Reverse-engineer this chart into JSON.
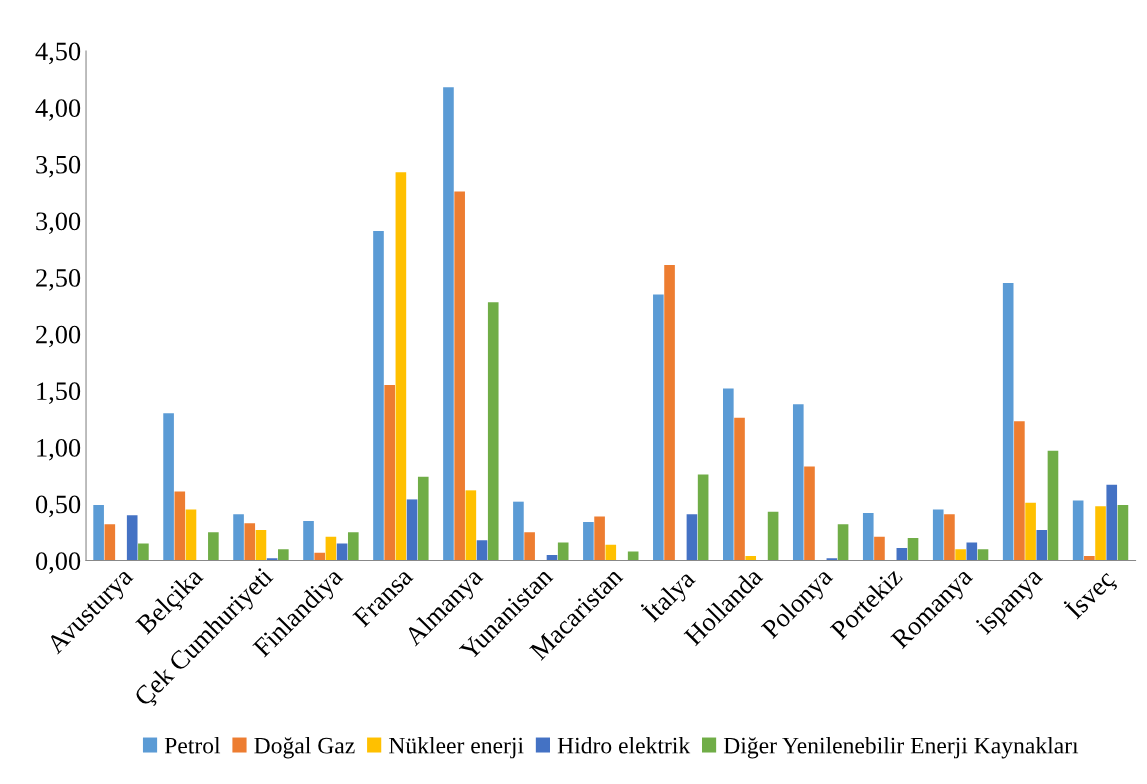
{
  "chart_data": {
    "type": "bar",
    "categories": [
      "Avusturya",
      "Belçika",
      "Çek Cumhuriyeti",
      "Finlandiya",
      "Fransa",
      "Almanya",
      "Yunanistan",
      "Macaristan",
      "İtalya",
      "Hollanda",
      "Polonya",
      "Portekiz",
      "Romanya",
      "ispanya",
      "İsveç"
    ],
    "series": [
      {
        "name": "Petrol",
        "color": "#5b9bd5",
        "values": [
          0.49,
          1.3,
          0.41,
          0.35,
          2.91,
          4.18,
          0.52,
          0.34,
          2.35,
          1.52,
          1.38,
          0.42,
          0.45,
          2.45,
          0.53
        ]
      },
      {
        "name": "Doğal Gaz",
        "color": "#ed7d31",
        "values": [
          0.32,
          0.61,
          0.33,
          0.07,
          1.55,
          3.26,
          0.25,
          0.39,
          2.61,
          1.26,
          0.83,
          0.21,
          0.41,
          1.23,
          0.04
        ]
      },
      {
        "name": "Nükleer enerji",
        "color": "#ffc000",
        "values": [
          0,
          0.45,
          0.27,
          0.21,
          3.43,
          0.62,
          0,
          0.14,
          0,
          0.04,
          0,
          0,
          0.1,
          0.51,
          0.48
        ]
      },
      {
        "name": "Hidro elektrik",
        "color": "#4472c4",
        "values": [
          0.4,
          0,
          0.02,
          0.15,
          0.54,
          0.18,
          0.05,
          0,
          0.41,
          0,
          0.02,
          0.11,
          0.16,
          0.27,
          0.67
        ]
      },
      {
        "name": "Diğer Yenilenebilir Enerji Kaynakları",
        "color": "#70ad47",
        "values": [
          0.15,
          0.25,
          0.1,
          0.25,
          0.74,
          2.28,
          0.16,
          0.08,
          0.76,
          0.43,
          0.32,
          0.2,
          0.1,
          0.97,
          0.49
        ]
      }
    ],
    "ylim": [
      0,
      4.5
    ],
    "yticks": [
      {
        "value": 0,
        "label": "0,00"
      },
      {
        "value": 0.5,
        "label": "0,50"
      },
      {
        "value": 1,
        "label": "1,00"
      },
      {
        "value": 1.5,
        "label": "1,50"
      },
      {
        "value": 2,
        "label": "2,00"
      },
      {
        "value": 2.5,
        "label": "2,50"
      },
      {
        "value": 3,
        "label": "3,00"
      },
      {
        "value": 3.5,
        "label": "3,50"
      },
      {
        "value": 4,
        "label": "4,00"
      },
      {
        "value": 4.5,
        "label": "4,50"
      }
    ],
    "grid": false,
    "legend": "bottom"
  }
}
